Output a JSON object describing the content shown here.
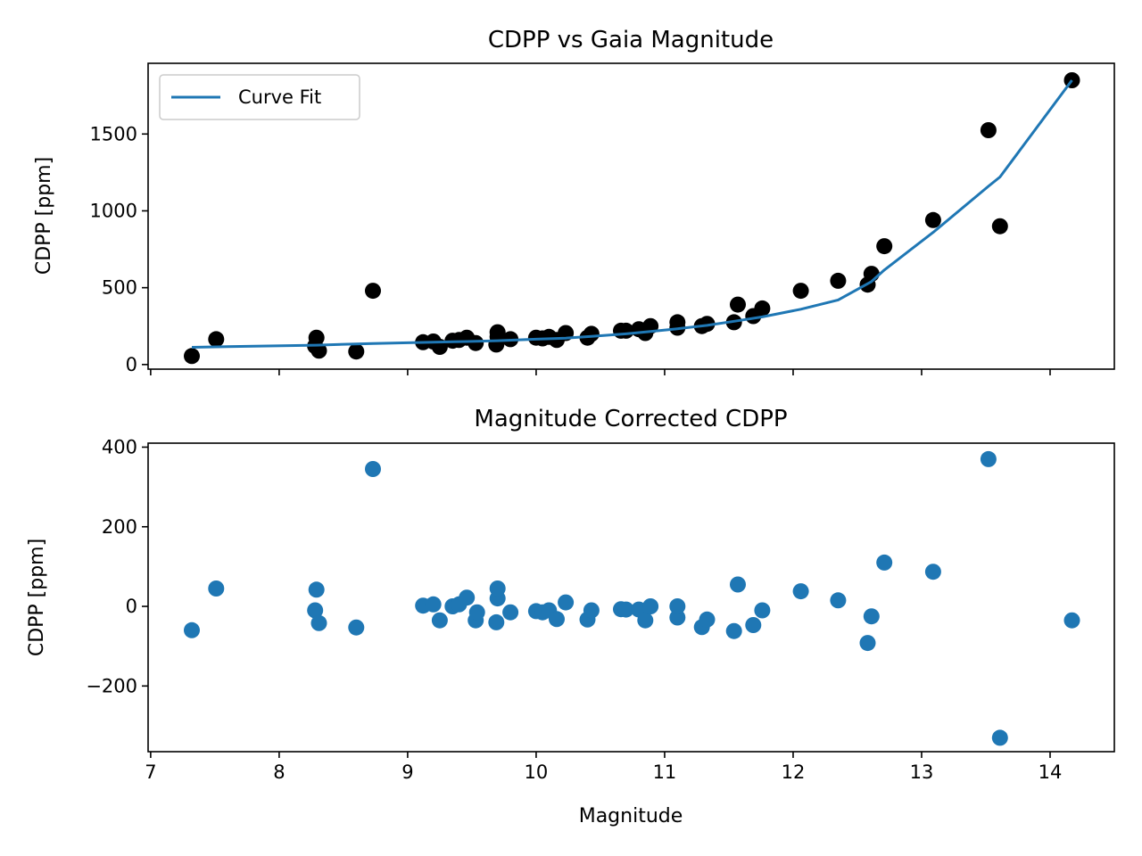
{
  "chart_data": [
    {
      "type": "scatter",
      "title": "CDPP vs Gaia Magnitude",
      "xlabel": "",
      "ylabel": "CDPP [ppm]",
      "xlim": [
        6.98,
        14.5
      ],
      "ylim": [
        -30,
        1960
      ],
      "xticks": [
        7,
        8,
        9,
        10,
        11,
        12,
        13,
        14
      ],
      "xtick_labels_shown": false,
      "yticks": [
        0,
        500,
        1000,
        1500
      ],
      "ytick_labels": [
        "0",
        "500",
        "1000",
        "1500"
      ],
      "legend": {
        "placement": "top-left",
        "entries": [
          "Curve Fit"
        ]
      },
      "grid": false,
      "colors": {
        "points": "#000000",
        "fit": "#1f77b4"
      },
      "series": [
        {
          "kind": "points",
          "x": [
            7.32,
            7.51,
            8.28,
            8.29,
            8.31,
            8.6,
            8.73,
            9.12,
            9.2,
            9.25,
            9.35,
            9.4,
            9.46,
            9.53,
            9.69,
            9.7,
            9.7,
            9.8,
            10.0,
            10.05,
            10.1,
            10.16,
            10.23,
            10.4,
            10.43,
            10.66,
            10.7,
            10.8,
            10.85,
            10.89,
            11.1,
            11.1,
            11.29,
            11.33,
            11.54,
            11.57,
            11.69,
            11.76,
            12.06,
            12.35,
            12.58,
            12.61,
            12.71,
            13.09,
            13.52,
            13.61,
            14.17
          ],
          "y": [
            55,
            165,
            120,
            175,
            90,
            85,
            480,
            145,
            150,
            115,
            155,
            160,
            175,
            140,
            130,
            180,
            210,
            165,
            175,
            170,
            180,
            160,
            205,
            175,
            200,
            220,
            220,
            230,
            205,
            250,
            240,
            275,
            250,
            265,
            275,
            390,
            315,
            365,
            480,
            545,
            520,
            590,
            770,
            940,
            1525,
            900,
            1850
          ]
        },
        {
          "name": "Curve Fit",
          "kind": "line",
          "x": [
            7.32,
            7.51,
            8.29,
            8.6,
            8.73,
            9.12,
            9.46,
            9.7,
            10.0,
            10.23,
            10.43,
            10.7,
            10.89,
            11.1,
            11.33,
            11.57,
            11.76,
            12.06,
            12.35,
            12.61,
            12.71,
            13.09,
            13.52,
            13.61,
            14.17
          ],
          "y": [
            112,
            115,
            126,
            134,
            137,
            144,
            150,
            155,
            165,
            172,
            183,
            200,
            215,
            233,
            255,
            285,
            310,
            360,
            420,
            540,
            615,
            860,
            1160,
            1220,
            1850
          ]
        }
      ]
    },
    {
      "type": "scatter",
      "title": "Magnitude Corrected CDPP",
      "xlabel": "Magnitude",
      "ylabel": "CDPP [ppm]",
      "xlim": [
        6.98,
        14.5
      ],
      "ylim": [
        -365,
        410
      ],
      "xticks": [
        7,
        8,
        9,
        10,
        11,
        12,
        13,
        14
      ],
      "xtick_labels": [
        "7",
        "8",
        "9",
        "10",
        "11",
        "12",
        "13",
        "14"
      ],
      "yticks": [
        -200,
        0,
        200,
        400
      ],
      "ytick_labels": [
        "−200",
        "0",
        "200",
        "400"
      ],
      "grid": false,
      "colors": {
        "points": "#1f77b4"
      },
      "series": [
        {
          "kind": "points",
          "x": [
            7.32,
            7.51,
            8.28,
            8.29,
            8.31,
            8.6,
            8.73,
            9.12,
            9.2,
            9.25,
            9.35,
            9.4,
            9.46,
            9.53,
            9.54,
            9.69,
            9.7,
            9.7,
            9.8,
            10.0,
            10.05,
            10.1,
            10.16,
            10.23,
            10.4,
            10.43,
            10.66,
            10.7,
            10.8,
            10.85,
            10.89,
            11.1,
            11.1,
            11.29,
            11.33,
            11.54,
            11.57,
            11.69,
            11.76,
            12.06,
            12.35,
            12.58,
            12.61,
            12.71,
            13.09,
            13.52,
            13.61,
            14.17
          ],
          "y": [
            -60,
            45,
            -10,
            42,
            -42,
            -53,
            345,
            2,
            5,
            -35,
            0,
            5,
            22,
            -35,
            -15,
            -40,
            20,
            45,
            -15,
            -12,
            -15,
            -10,
            -32,
            10,
            -33,
            -10,
            -7,
            -8,
            -8,
            -35,
            0,
            -28,
            0,
            -52,
            -33,
            -62,
            55,
            -47,
            -10,
            38,
            15,
            -92,
            -25,
            110,
            87,
            370,
            -330,
            -35
          ]
        }
      ]
    }
  ]
}
